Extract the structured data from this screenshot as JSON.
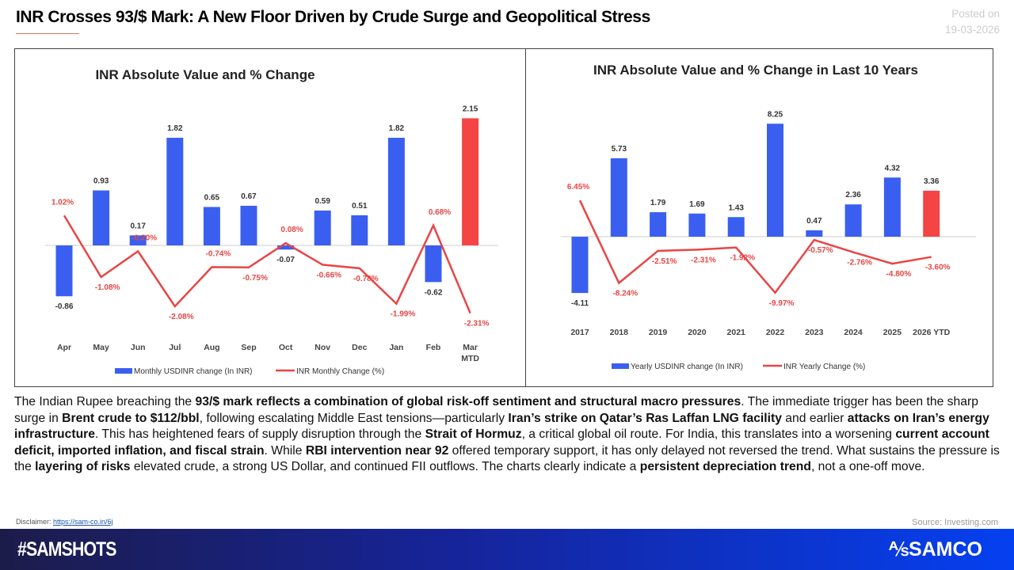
{
  "header": {
    "title": "INR Crosses 93/$ Mark: A New Floor Driven by Crude Surge and Geopolitical Stress",
    "posted_label": "Posted on",
    "posted_date": "19-03-2026"
  },
  "chart_data": [
    {
      "type": "bar",
      "title": "INR Absolute Value and % Change",
      "categories": [
        "Apr",
        "May",
        "Jun",
        "Jul",
        "Aug",
        "Sep",
        "Oct",
        "Nov",
        "Dec",
        "Jan",
        "Feb",
        "Mar MTD"
      ],
      "series": [
        {
          "name": "Monthly USDINR change (In INR)",
          "type": "bar",
          "values": [
            -0.86,
            0.93,
            0.17,
            1.82,
            0.65,
            0.67,
            -0.07,
            0.59,
            0.51,
            1.82,
            -0.62,
            2.15
          ],
          "color": "#3a5ff0",
          "highlight_last": "#f44444"
        },
        {
          "name": "INR Monthly Change (%)",
          "type": "line",
          "values": [
            1.02,
            -1.08,
            -0.2,
            -2.08,
            -0.74,
            -0.75,
            0.08,
            -0.66,
            -0.78,
            -1.99,
            0.68,
            -2.31
          ],
          "color": "#e84545"
        }
      ],
      "legend": "bottom"
    },
    {
      "type": "bar",
      "title": "INR Absolute Value and % Change in Last 10 Years",
      "categories": [
        "2017",
        "2018",
        "2019",
        "2020",
        "2021",
        "2022",
        "2023",
        "2024",
        "2025",
        "2026 YTD"
      ],
      "series": [
        {
          "name": "Yearly USDINR change (In INR)",
          "type": "bar",
          "values": [
            -4.11,
            5.73,
            1.79,
            1.69,
            1.43,
            8.25,
            0.47,
            2.36,
            4.32,
            3.36
          ],
          "color": "#3a5ff0",
          "highlight_last": "#f44444"
        },
        {
          "name": "INR Yearly Change (%)",
          "type": "line",
          "values": [
            6.45,
            -8.24,
            -2.51,
            -2.31,
            -1.92,
            -9.97,
            -0.57,
            -2.76,
            -4.8,
            -3.6
          ],
          "color": "#e84545"
        }
      ],
      "legend": "bottom"
    }
  ],
  "paragraph": [
    {
      "t": "The Indian Rupee breaching the "
    },
    {
      "t": "93/$ mark reflects a combination of global risk-off sentiment and structural macro pressures",
      "b": true
    },
    {
      "t": ". The immediate trigger has been the sharp surge in "
    },
    {
      "t": "Brent crude to $112/bbl",
      "b": true
    },
    {
      "t": ", following escalating Middle East tensions—particularly "
    },
    {
      "t": "Iran’s strike on Qatar’s Ras Laffan LNG facility",
      "b": true
    },
    {
      "t": " and earlier "
    },
    {
      "t": "attacks on Iran’s energy infrastructure",
      "b": true
    },
    {
      "t": ". This has heightened fears of supply disruption through the "
    },
    {
      "t": "Strait of Hormuz",
      "b": true
    },
    {
      "t": ", a critical global oil route. For India, this translates into a worsening "
    },
    {
      "t": "current account deficit, imported inflation, and fiscal strain",
      "b": true
    },
    {
      "t": ". While "
    },
    {
      "t": "RBI intervention near 92",
      "b": true
    },
    {
      "t": " offered temporary support, it has only delayed not reversed the trend. What sustains the pressure is the "
    },
    {
      "t": "layering of risks",
      "b": true
    },
    {
      "t": " elevated crude, a strong US Dollar, and continued FII outflows. The charts clearly indicate a "
    },
    {
      "t": "persistent depreciation trend",
      "b": true
    },
    {
      "t": ", not a one-off move."
    }
  ],
  "footer": {
    "disclaimer_label": "Disclaimer:",
    "disclaimer_link": "https://sam-co.in/6j",
    "source": "Source: Investing.com",
    "hashtag": "#SAMSHOTS",
    "logo": "SAMCO"
  }
}
